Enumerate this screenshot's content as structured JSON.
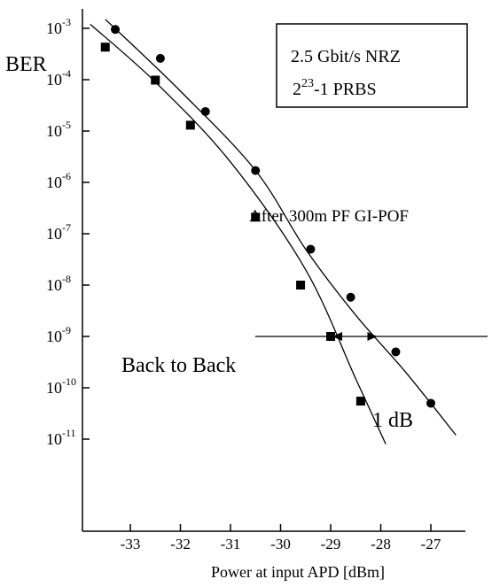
{
  "chart_data": {
    "type": "scatter",
    "title": "",
    "xlabel": "Power at input APD [dBm]",
    "ylabel": "BER",
    "yscale": "log",
    "xlim": [
      -34.0,
      -26.3
    ],
    "ylim": [
      1e-11,
      0.001
    ],
    "grid": false,
    "x_ticks": [
      {
        "v": -33,
        "label": "-33"
      },
      {
        "v": -32,
        "label": "-32"
      },
      {
        "v": -31,
        "label": "-31"
      },
      {
        "v": -30,
        "label": "-30"
      },
      {
        "v": -29,
        "label": "-29"
      },
      {
        "v": -28,
        "label": "-28"
      },
      {
        "v": -27,
        "label": "-27"
      }
    ],
    "y_ticks": [
      {
        "exp": -3,
        "base": "10",
        "sup": "-3"
      },
      {
        "exp": -4,
        "base": "10",
        "sup": "-4"
      },
      {
        "exp": -5,
        "base": "10",
        "sup": "-5"
      },
      {
        "exp": -6,
        "base": "10",
        "sup": "-6"
      },
      {
        "exp": -7,
        "base": "10",
        "sup": "-7"
      },
      {
        "exp": -8,
        "base": "10",
        "sup": "-8"
      },
      {
        "exp": -9,
        "base": "10",
        "sup": "-9"
      },
      {
        "exp": -10,
        "base": "10",
        "sup": "-10"
      },
      {
        "exp": -11,
        "base": "10",
        "sup": "-11"
      }
    ],
    "series": [
      {
        "name": "Back to Back",
        "marker": "square",
        "points": [
          {
            "x": -33.5,
            "y": 0.00043
          },
          {
            "x": -32.5,
            "y": 9.8e-05
          },
          {
            "x": -31.8,
            "y": 1.3e-05
          },
          {
            "x": -30.5,
            "y": 2.1e-07
          },
          {
            "x": -29.6,
            "y": 1e-08
          },
          {
            "x": -29.0,
            "y": 1e-09
          },
          {
            "x": -28.4,
            "y": 5.5e-11
          }
        ],
        "fit": [
          [
            -33.8,
            0.0012
          ],
          [
            -32.5,
            9e-05
          ],
          [
            -31,
            2.5e-06
          ],
          [
            -29.5,
            2e-08
          ],
          [
            -28.5,
            1.5e-10
          ],
          [
            -27.9,
            8e-12
          ]
        ]
      },
      {
        "name": "After 300m PF GI-POF",
        "marker": "circle",
        "points": [
          {
            "x": -33.3,
            "y": 0.00095
          },
          {
            "x": -32.4,
            "y": 0.00026
          },
          {
            "x": -31.5,
            "y": 2.4e-05
          },
          {
            "x": -30.5,
            "y": 1.7e-06
          },
          {
            "x": -29.4,
            "y": 5e-08
          },
          {
            "x": -28.6,
            "y": 5.8e-09
          },
          {
            "x": -27.7,
            "y": 5e-10
          },
          {
            "x": -27.0,
            "y": 5e-11
          }
        ],
        "fit": [
          [
            -33.5,
            0.0015
          ],
          [
            -32,
            6e-05
          ],
          [
            -30.5,
            1.7e-06
          ],
          [
            -29.5,
            5e-08
          ],
          [
            -28.5,
            2.6e-09
          ],
          [
            -27.5,
            2e-10
          ],
          [
            -26.5,
            1.2e-11
          ]
        ]
      }
    ],
    "annotations": {
      "legend_box": {
        "line1": "2.5 Gbit/s NRZ",
        "line2_base": "2",
        "line2_sup": "23",
        "line2_rest": "-1 PRBS"
      },
      "curve_label_upper": "After 300m PF GI-POF",
      "curve_label_lower": "Back to Back",
      "delta_label": "1 dB",
      "reference_level": 1e-09
    }
  }
}
